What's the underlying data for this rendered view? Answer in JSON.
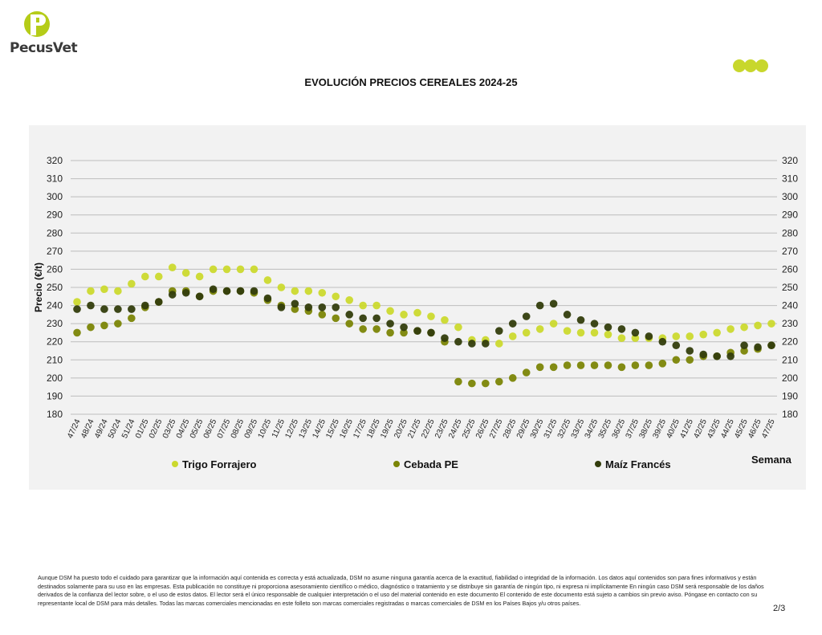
{
  "brand": {
    "name": "PecusVet",
    "logo_letter": "P"
  },
  "colors": {
    "trigo": "#cbd92e",
    "cebada": "#7b8506",
    "maiz": "#333d0c",
    "grid": "#bdbdbd",
    "panel": "#f2f2f2"
  },
  "chart_data": {
    "type": "scatter",
    "title": "EVOLUCIÓN PRECIOS CEREALES 2024-25",
    "ylabel": "Precio (€/t)",
    "xlabel": "Semana",
    "ylim": [
      180,
      320
    ],
    "yticks": [
      180,
      190,
      200,
      210,
      220,
      230,
      240,
      250,
      260,
      270,
      280,
      290,
      300,
      310,
      320
    ],
    "grid": true,
    "legend_position": "bottom",
    "categories": [
      "47/24",
      "48/24",
      "49/24",
      "50/24",
      "51/24",
      "01/25",
      "02/25",
      "03/25",
      "04/25",
      "05/25",
      "06/25",
      "07/25",
      "08/25",
      "09/25",
      "10/25",
      "11/25",
      "12/25",
      "13/25",
      "14/25",
      "15/25",
      "16/25",
      "17/25",
      "18/25",
      "19/25",
      "20/25",
      "21/25",
      "22/25",
      "23/25",
      "24/25",
      "25/25",
      "26/25",
      "27/25",
      "28/25",
      "29/25",
      "30/25",
      "31/25",
      "32/25",
      "33/25",
      "34/25",
      "35/25",
      "36/25",
      "37/25",
      "38/25",
      "39/25",
      "40/25",
      "41/25",
      "42/25",
      "43/25",
      "44/25",
      "45/25",
      "46/25",
      "47/25"
    ],
    "series": [
      {
        "name": "Trigo Forrajero",
        "color_key": "trigo",
        "values": [
          242,
          248,
          249,
          248,
          252,
          256,
          256,
          261,
          258,
          256,
          260,
          260,
          260,
          260,
          254,
          250,
          248,
          248,
          247,
          245,
          243,
          240,
          240,
          237,
          235,
          236,
          234,
          232,
          228,
          221,
          221,
          219,
          223,
          225,
          227,
          230,
          226,
          225,
          225,
          224,
          222,
          222,
          222,
          222,
          223,
          223,
          224,
          225,
          227,
          228,
          229,
          230
        ]
      },
      {
        "name": "Cebada PE",
        "color_key": "cebada",
        "values": [
          225,
          228,
          229,
          230,
          233,
          239,
          242,
          248,
          248,
          245,
          248,
          248,
          248,
          247,
          243,
          240,
          238,
          237,
          235,
          233,
          230,
          227,
          227,
          225,
          225,
          226,
          225,
          220,
          198,
          197,
          197,
          198,
          200,
          203,
          206,
          206,
          207,
          207,
          207,
          207,
          206,
          207,
          207,
          208,
          210,
          210,
          212,
          212,
          214,
          215,
          216,
          218
        ]
      },
      {
        "name": "Maíz Francés",
        "color_key": "maiz",
        "values": [
          238,
          240,
          238,
          238,
          238,
          240,
          242,
          246,
          247,
          245,
          249,
          248,
          248,
          248,
          244,
          239,
          241,
          239,
          239,
          239,
          235,
          233,
          233,
          230,
          228,
          226,
          225,
          222,
          220,
          219,
          219,
          226,
          230,
          234,
          240,
          241,
          235,
          232,
          230,
          228,
          227,
          225,
          223,
          220,
          218,
          215,
          213,
          212,
          212,
          218,
          217,
          218
        ]
      }
    ]
  },
  "disclaimer": "Aunque DSM ha puesto todo el cuidado para garantizar que la información aquí contenida es correcta y está actualizada, DSM no asume ninguna garantía acerca de la exactitud, fiabilidad o integridad de la información. Los datos aquí contenidos son para fines informativos y están destinados solamente para su uso en las empresas. Esta publicación no constituye ni proporciona asesoramiento científico o médico, diagnóstico o tratamiento y se distribuye sin garantía de ningún tipo, ni expresa ni implícitamente En ningún caso DSM será responsable de los daños derivados de la confianza del lector sobre, o el uso de estos datos. El lector será el único responsable de cualquier interpretación o el uso del material contenido en este documento El contenido de este documento está sujeto a cambios sin previo aviso. Póngase en contacto con su representante local de DSM para más detalles. Todas las marcas comerciales mencionadas en este folleto son marcas comerciales registradas o marcas comerciales de DSM en los Países Bajos y/u otros países.",
  "page_number": "2/3"
}
